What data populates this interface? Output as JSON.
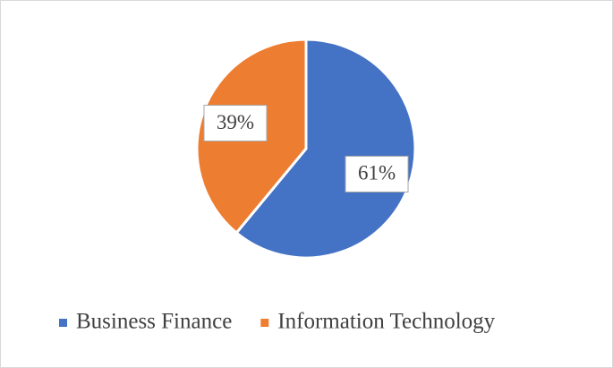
{
  "chart_data": {
    "type": "pie",
    "categories": [
      "Business Finance",
      "Information Technology"
    ],
    "values": [
      61,
      39
    ],
    "value_labels": [
      "61%",
      "39%"
    ],
    "colors": [
      "#4472c4",
      "#ed7d31"
    ]
  }
}
